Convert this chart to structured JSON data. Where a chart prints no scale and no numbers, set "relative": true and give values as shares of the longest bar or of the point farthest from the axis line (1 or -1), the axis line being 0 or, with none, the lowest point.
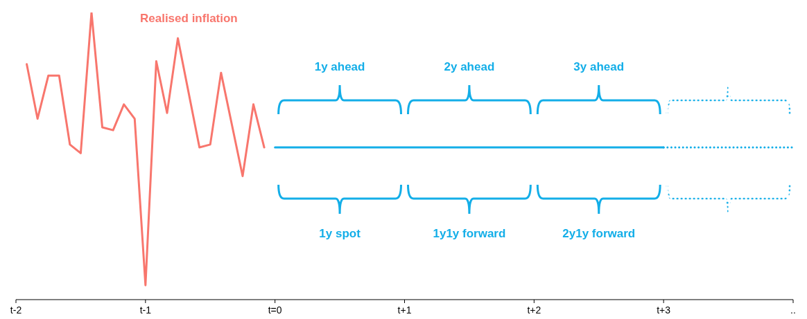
{
  "chart_data": {
    "type": "line",
    "relative": true,
    "marker": "none",
    "categories": [
      "t-2",
      null,
      null,
      null,
      null,
      null,
      null,
      null,
      null,
      null,
      null,
      null,
      "t-1",
      null,
      null,
      null,
      null,
      null,
      null,
      null,
      null,
      null,
      null,
      null,
      "t=0",
      null,
      null,
      null,
      null,
      null,
      null,
      null,
      null,
      null,
      null,
      null,
      "t+1",
      null,
      null,
      null,
      null,
      null,
      null,
      null,
      null,
      null,
      null,
      null,
      "t+2",
      null,
      null,
      null,
      null,
      null,
      null,
      null,
      null,
      null,
      null,
      null,
      "t+3",
      null,
      null,
      null,
      null,
      null,
      null,
      null,
      null,
      null,
      null,
      null,
      ".."
    ],
    "series": [
      {
        "name": "Realised inflation",
        "color": "#f8766d",
        "line_style": "solid",
        "values": [
          null,
          0.82,
          0.63,
          0.78,
          0.78,
          0.54,
          0.51,
          1,
          0.6,
          0.59,
          0.68,
          0.63,
          0.05,
          0.83,
          0.65,
          0.91,
          null,
          0.53,
          0.54,
          0.79,
          null,
          0.43,
          0.68,
          0.53,
          null,
          null,
          null,
          null,
          null,
          null,
          null,
          null,
          null,
          null,
          null,
          null,
          null,
          null,
          null,
          null,
          null,
          null,
          null,
          null,
          null,
          null,
          null,
          null,
          null,
          null,
          null,
          null,
          null,
          null,
          null,
          null,
          null,
          null,
          null,
          null,
          null,
          null,
          null,
          null,
          null,
          null,
          null,
          null,
          null,
          null,
          null,
          null,
          null
        ]
      },
      {
        "color": "#13aee8",
        "line_style": "solid",
        "values": [
          null,
          null,
          null,
          null,
          null,
          null,
          null,
          null,
          null,
          null,
          null,
          null,
          null,
          null,
          null,
          null,
          null,
          null,
          null,
          null,
          null,
          null,
          null,
          null,
          0.53,
          null,
          null,
          null,
          null,
          null,
          null,
          null,
          null,
          null,
          null,
          null,
          null,
          null,
          null,
          null,
          null,
          null,
          null,
          null,
          null,
          null,
          null,
          null,
          null,
          null,
          null,
          null,
          null,
          null,
          null,
          null,
          null,
          null,
          null,
          null,
          0.53,
          null,
          null,
          null,
          null,
          null,
          null,
          null,
          null,
          null,
          null,
          null,
          null
        ]
      },
      {
        "color": "#13aee8",
        "line_style": "dotted",
        "values": [
          null,
          null,
          null,
          null,
          null,
          null,
          null,
          null,
          null,
          null,
          null,
          null,
          null,
          null,
          null,
          null,
          null,
          null,
          null,
          null,
          null,
          null,
          null,
          null,
          null,
          null,
          null,
          null,
          null,
          null,
          null,
          null,
          null,
          null,
          null,
          null,
          null,
          null,
          null,
          null,
          null,
          null,
          null,
          null,
          null,
          null,
          null,
          null,
          null,
          null,
          null,
          null,
          null,
          null,
          null,
          null,
          null,
          null,
          null,
          null,
          0.53,
          null,
          null,
          null,
          null,
          null,
          null,
          null,
          null,
          null,
          null,
          null,
          0.53
        ]
      }
    ],
    "annotations": [
      "1y ahead",
      "2y ahead",
      "3y ahead",
      "1y spot",
      "1y1y forward",
      "2y1y forward"
    ]
  }
}
